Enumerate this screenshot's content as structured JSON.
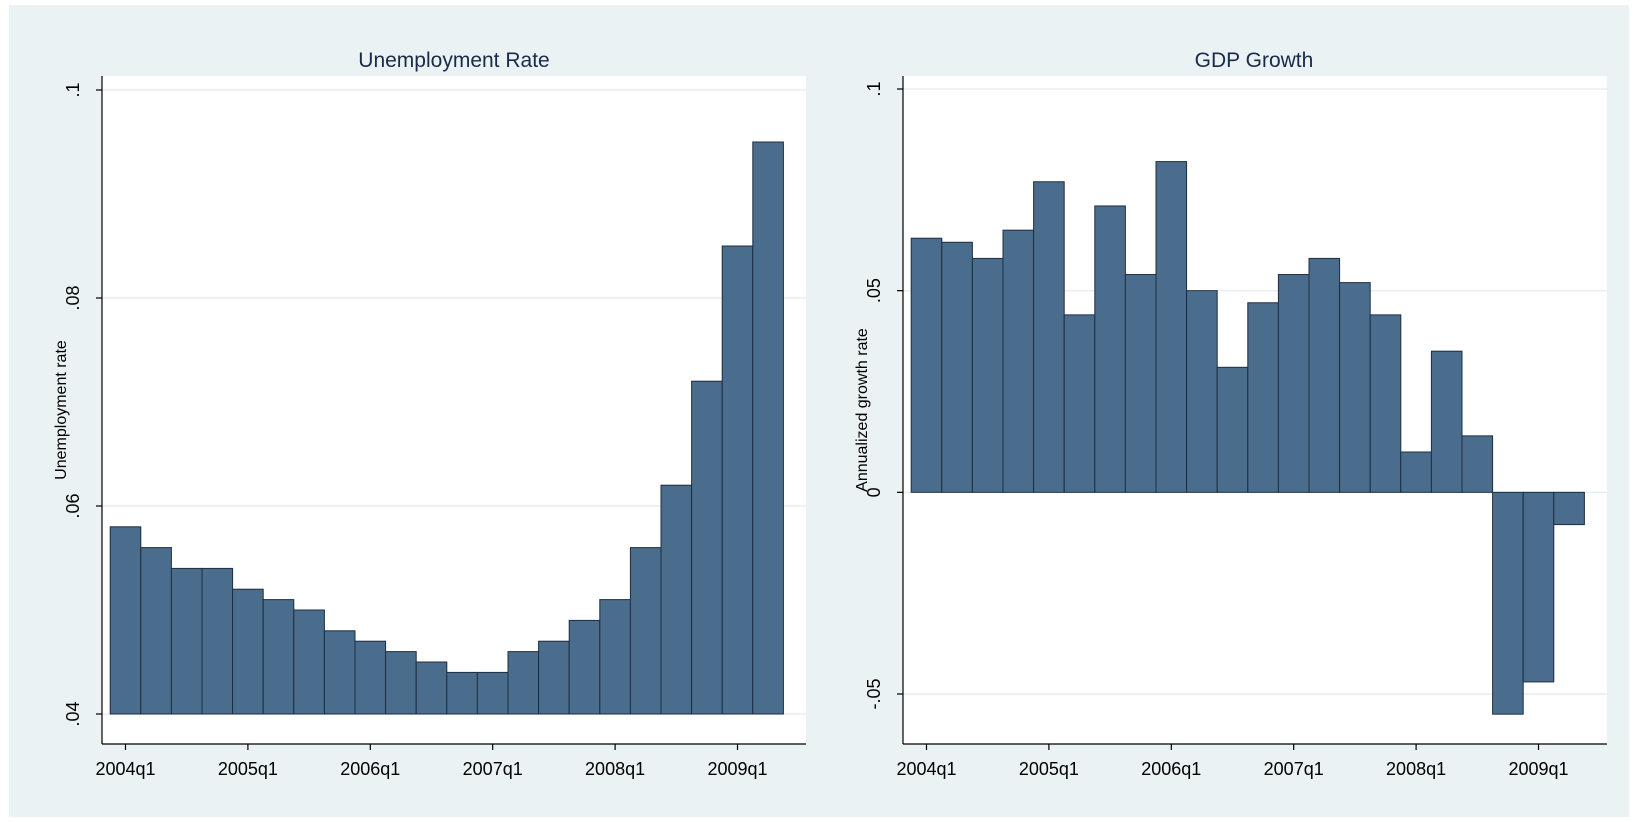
{
  "colors": {
    "outer_background": "#eaf2f3",
    "plot_background": "#ffffff",
    "bar_fill": "#4a6d8e",
    "bar_outline": "#1e2e40",
    "title_color": "#1a2a4a"
  },
  "chart_data": [
    {
      "type": "bar",
      "title": "Unemployment Rate",
      "ylabel": "Unemployment rate",
      "xlabel": "",
      "grid": true,
      "ylim": [
        0.04,
        0.1
      ],
      "yticks": [
        0.04,
        0.06,
        0.08,
        0.1
      ],
      "ytick_labels": [
        ".04",
        ".06",
        ".08",
        ".1"
      ],
      "xticks": [
        "2004q1",
        "2005q1",
        "2006q1",
        "2007q1",
        "2008q1",
        "2009q1"
      ],
      "categories": [
        "2004q1",
        "2004q2",
        "2004q3",
        "2004q4",
        "2005q1",
        "2005q2",
        "2005q3",
        "2005q4",
        "2006q1",
        "2006q2",
        "2006q3",
        "2006q4",
        "2007q1",
        "2007q2",
        "2007q3",
        "2007q4",
        "2008q1",
        "2008q2",
        "2008q3",
        "2008q4",
        "2009q1",
        "2009q2"
      ],
      "values": [
        0.058,
        0.056,
        0.054,
        0.054,
        0.052,
        0.051,
        0.05,
        0.048,
        0.047,
        0.046,
        0.045,
        0.044,
        0.044,
        0.046,
        0.047,
        0.049,
        0.051,
        0.056,
        0.062,
        0.072,
        0.085,
        0.095
      ]
    },
    {
      "type": "bar",
      "title": "GDP Growth",
      "ylabel": "Annualized growth rate",
      "xlabel": "",
      "grid": true,
      "ylim": [
        -0.058,
        0.102
      ],
      "yticks": [
        -0.05,
        0,
        0.05,
        0.1
      ],
      "ytick_labels": [
        "-.05",
        "0",
        ".05",
        ".1"
      ],
      "xticks": [
        "2004q1",
        "2005q1",
        "2006q1",
        "2007q1",
        "2008q1",
        "2009q1"
      ],
      "categories": [
        "2004q1",
        "2004q2",
        "2004q3",
        "2004q4",
        "2005q1",
        "2005q2",
        "2005q3",
        "2005q4",
        "2006q1",
        "2006q2",
        "2006q3",
        "2006q4",
        "2007q1",
        "2007q2",
        "2007q3",
        "2007q4",
        "2008q1",
        "2008q2",
        "2008q3",
        "2008q4",
        "2009q1",
        "2009q2"
      ],
      "values": [
        0.063,
        0.062,
        0.058,
        0.065,
        0.077,
        0.044,
        0.071,
        0.054,
        0.082,
        0.05,
        0.031,
        0.047,
        0.054,
        0.058,
        0.052,
        0.044,
        0.01,
        0.035,
        0.014,
        -0.055,
        -0.047,
        -0.008
      ]
    }
  ]
}
